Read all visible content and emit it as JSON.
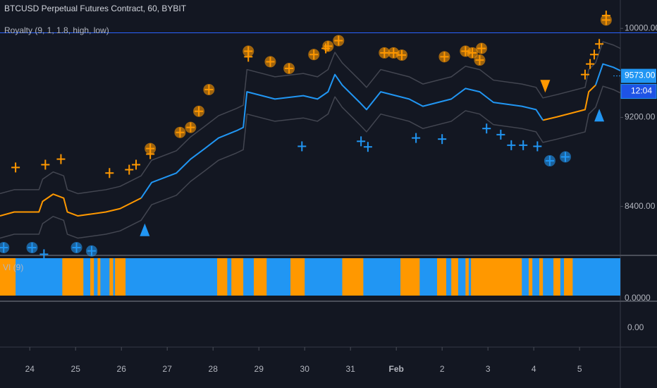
{
  "chart_data": {
    "type": "line",
    "title": "BTCUSD Perpetual Futures Contract, 60, BYBIT",
    "subtitle": "Royalty (9, 1, 1.8, high, low)",
    "x": [
      23.35,
      23.66,
      24.2,
      24.28,
      24.51,
      24.74,
      24.82,
      25.05,
      25.66,
      25.97,
      26.43,
      26.66,
      27.2,
      27.51,
      27.82,
      28.12,
      28.51,
      28.66,
      28.74,
      29.35,
      29.97,
      30.28,
      30.51,
      30.66,
      30.82,
      31.2,
      31.35,
      31.66,
      32.28,
      32.58,
      33.2,
      33.51,
      33.82,
      34.12,
      34.74,
      35.05,
      35.2,
      35.51,
      36.12,
      36.2,
      36.35,
      36.51,
      36.74,
      36.89
    ],
    "series": [
      {
        "color": "#ff9800",
        "values": [
          8315,
          8350,
          8350,
          8445,
          8510,
          8475,
          8350,
          8315,
          8350,
          8380,
          8475,
          null,
          null,
          null,
          null,
          null,
          null,
          null,
          null,
          null,
          null,
          null,
          null,
          null,
          null,
          null,
          null,
          null,
          null,
          null,
          null,
          null,
          null,
          null,
          null,
          null,
          9175,
          9205,
          9270,
          9430,
          9490,
          null,
          null,
          null
        ]
      },
      {
        "color": "#2196f3",
        "values": [
          null,
          null,
          null,
          null,
          null,
          null,
          null,
          null,
          null,
          null,
          8475,
          8615,
          8700,
          8825,
          8920,
          9015,
          9080,
          9110,
          9430,
          9365,
          9395,
          9365,
          9430,
          9585,
          9490,
          9335,
          9270,
          9430,
          9365,
          9300,
          9365,
          9460,
          9430,
          9335,
          9300,
          9270,
          9175,
          null,
          null,
          null,
          9490,
          9680,
          9650,
          9620
        ]
      }
    ],
    "bands": {
      "color": "#2a2e39",
      "upper": [
        8515,
        8550,
        8550,
        8645,
        8710,
        8675,
        8550,
        8515,
        8550,
        8580,
        8675,
        8815,
        8900,
        9025,
        9120,
        9215,
        9280,
        9310,
        9630,
        9565,
        9595,
        9565,
        9630,
        9785,
        9690,
        9535,
        9470,
        9630,
        9565,
        9500,
        9565,
        9660,
        9630,
        9535,
        9500,
        9470,
        9375,
        9405,
        9470,
        9630,
        9690,
        9880,
        9850,
        9820
      ],
      "lower": [
        8115,
        8150,
        8150,
        8245,
        8310,
        8275,
        8150,
        8115,
        8150,
        8180,
        8275,
        8415,
        8500,
        8625,
        8720,
        8815,
        8880,
        8910,
        9230,
        9165,
        9195,
        9165,
        9230,
        9385,
        9290,
        9135,
        9070,
        9230,
        9165,
        9100,
        9165,
        9260,
        9230,
        9135,
        9100,
        9070,
        8975,
        9005,
        9070,
        9230,
        9290,
        9480,
        9450,
        9420
      ]
    },
    "markers": [
      {
        "shape": "cross",
        "color": "#ff9800",
        "x": [
          23.69,
          24.34,
          24.68,
          25.74,
          26.17,
          26.32,
          26.63,
          28.77,
          30.46,
          36.12,
          36.23,
          36.32,
          36.43,
          36.58
        ],
        "y": [
          8750,
          8775,
          8825,
          8700,
          8730,
          8775,
          8870,
          9745,
          9820,
          9585,
          9680,
          9765,
          9860,
          10115
        ]
      },
      {
        "shape": "circle",
        "color": "#ff9800",
        "x": [
          26.63,
          27.28,
          27.51,
          27.69,
          27.91,
          28.77,
          29.25,
          29.66,
          30.2,
          30.51,
          30.74,
          31.74,
          31.94,
          32.12,
          33.05,
          33.51,
          33.66,
          33.86,
          33.82,
          36.58
        ],
        "y": [
          8920,
          9065,
          9110,
          9255,
          9450,
          9795,
          9700,
          9640,
          9765,
          9840,
          9890,
          9780,
          9780,
          9760,
          9745,
          9795,
          9780,
          9820,
          9715,
          10075
        ]
      },
      {
        "shape": "cross",
        "color": "#2196f3",
        "x": [
          29.94,
          31.23,
          31.38,
          32.43,
          33.0,
          33.97,
          34.28,
          34.51,
          34.77,
          35.08,
          24.31
        ],
        "y": [
          8940,
          8985,
          8935,
          9015,
          9005,
          9100,
          9045,
          8950,
          8950,
          8940,
          7970
        ]
      },
      {
        "shape": "circle",
        "color": "#2196f3",
        "x": [
          35.35,
          35.69,
          23.43,
          24.05,
          25.02,
          25.35
        ],
        "y": [
          8810,
          8845,
          8030,
          8030,
          8030,
          8000
        ]
      },
      {
        "shape": "triangle-up",
        "color": "#2196f3",
        "x": [
          26.51,
          36.43
        ],
        "y": [
          8190,
          9220
        ]
      },
      {
        "shape": "triangle-down",
        "color": "#ff9800",
        "x": [
          35.25
        ],
        "y": [
          9480
        ]
      }
    ],
    "hline": {
      "value": 9960,
      "color": "#2962ff"
    },
    "last_price": {
      "value": 9573,
      "label": "9573.00",
      "color": "#2196f3"
    },
    "countdown": "12:04",
    "xlim": [
      23.35,
      36.89
    ],
    "xticks": [
      24,
      25,
      26,
      27,
      28,
      29,
      30,
      31,
      {
        "value": 32,
        "label": "Feb"
      },
      {
        "value": 33,
        "label": "2"
      },
      {
        "value": 34,
        "label": "3"
      },
      {
        "value": 35,
        "label": "4"
      },
      {
        "value": 36,
        "label": "5"
      }
    ],
    "ylim": [
      7960,
      10255
    ],
    "yticks": [
      {
        "value": 8400,
        "label": "8400.00"
      },
      {
        "value": 9200,
        "label": "9200.00"
      },
      {
        "value": 10000,
        "label": "10000.00"
      }
    ],
    "vi": {
      "title": "VI (9)",
      "axis_label": "0.0000",
      "base_color": "#2196f3",
      "color": "#ff9800",
      "segments": [
        [
          23.35,
          23.69
        ],
        [
          24.71,
          25.17
        ],
        [
          25.32,
          25.4
        ],
        [
          25.48,
          25.54
        ],
        [
          25.74,
          25.82
        ],
        [
          25.86,
          26.09
        ],
        [
          28.09,
          28.31
        ],
        [
          28.4,
          28.66
        ],
        [
          28.89,
          29.17
        ],
        [
          29.69,
          30.0
        ],
        [
          30.82,
          31.28
        ],
        [
          32.09,
          32.51
        ],
        [
          32.89,
          33.09
        ],
        [
          33.2,
          33.35
        ],
        [
          33.51,
          33.58
        ],
        [
          33.63,
          34.74
        ],
        [
          34.89,
          34.97
        ],
        [
          35.12,
          35.2
        ],
        [
          35.43,
          35.58
        ],
        [
          35.66,
          35.85
        ]
      ]
    },
    "pane3": {
      "axis_label": "0.00"
    }
  }
}
